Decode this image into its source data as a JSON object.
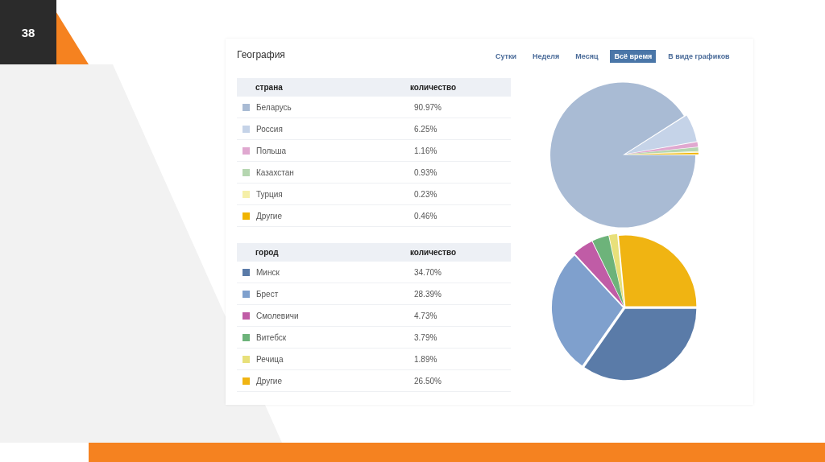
{
  "chart_data": [
    {
      "type": "pie",
      "title": "География",
      "legend": "left",
      "legend_title": "страна",
      "annotations": [
        "38",
        "Сутки",
        "Неделя",
        "Месяц",
        "Всё время",
        "В виде графиков",
        "количество"
      ],
      "categories": [
        "Беларусь",
        "Россия",
        "Польша",
        "Казахстан",
        "Турция",
        "Другие"
      ],
      "values": [
        90.97,
        6.25,
        1.16,
        0.93,
        0.23,
        0.46
      ],
      "value_labels": [
        "90.97%",
        "6.25%",
        "1.16%",
        "0.93%",
        "0.23%",
        "0.46%"
      ],
      "colors": [
        "#a9bbd4",
        "#c5d3e8",
        "#e0a8d0",
        "#b5d6b0",
        "#f5efa8",
        "#f0b400"
      ]
    },
    {
      "type": "pie",
      "legend": "left",
      "legend_title": "город",
      "annotations": [
        "количество"
      ],
      "categories": [
        "Минск",
        "Брест",
        "Смолевичи",
        "Витебск",
        "Речица",
        "Другие"
      ],
      "values": [
        34.7,
        28.39,
        4.73,
        3.79,
        1.89,
        26.5
      ],
      "value_labels": [
        "34.70%",
        "28.39%",
        "4.73%",
        "3.79%",
        "1.89%",
        "26.50%"
      ],
      "colors": [
        "#5a7ba8",
        "#7fa0cd",
        "#c05ca6",
        "#6db37a",
        "#e8e07a",
        "#f0b412"
      ]
    }
  ]
}
